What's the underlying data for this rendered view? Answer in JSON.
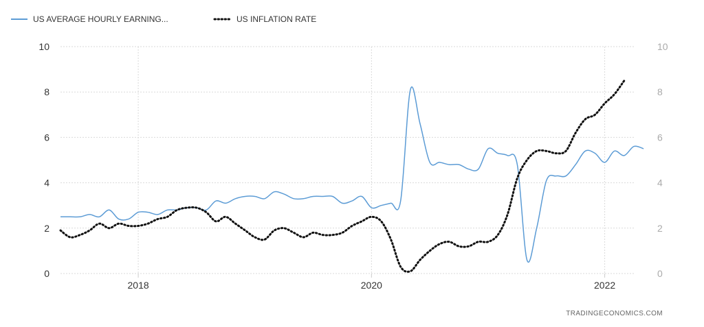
{
  "chart_data": {
    "type": "line",
    "legend": {
      "placement": "top-left"
    },
    "grid": true,
    "xlim": [
      "2017-05",
      "2022-04"
    ],
    "ylim": [
      0,
      10
    ],
    "y2lim": [
      0,
      10
    ],
    "y_ticks": [
      "0",
      "2",
      "4",
      "6",
      "8",
      "10"
    ],
    "y2_ticks": [
      "0",
      "2",
      "4",
      "6",
      "8",
      "10"
    ],
    "x_ticks": [
      {
        "label": "2018",
        "date": "2018-01"
      },
      {
        "label": "2020",
        "date": "2020-01"
      },
      {
        "label": "2022",
        "date": "2022-01"
      }
    ],
    "series": [
      {
        "name": "US AVERAGE HOURLY EARNING...",
        "color": "#5b9bd5",
        "style": "solid",
        "points": [
          [
            "2017-05",
            2.5
          ],
          [
            "2017-06",
            2.5
          ],
          [
            "2017-07",
            2.5
          ],
          [
            "2017-08",
            2.6
          ],
          [
            "2017-09",
            2.5
          ],
          [
            "2017-10",
            2.8
          ],
          [
            "2017-11",
            2.4
          ],
          [
            "2017-12",
            2.4
          ],
          [
            "2018-01",
            2.7
          ],
          [
            "2018-02",
            2.7
          ],
          [
            "2018-03",
            2.6
          ],
          [
            "2018-04",
            2.8
          ],
          [
            "2018-05",
            2.8
          ],
          [
            "2018-06",
            2.9
          ],
          [
            "2018-07",
            2.9
          ],
          [
            "2018-08",
            2.8
          ],
          [
            "2018-09",
            3.2
          ],
          [
            "2018-10",
            3.1
          ],
          [
            "2018-11",
            3.3
          ],
          [
            "2018-12",
            3.4
          ],
          [
            "2019-01",
            3.4
          ],
          [
            "2019-02",
            3.3
          ],
          [
            "2019-03",
            3.6
          ],
          [
            "2019-04",
            3.5
          ],
          [
            "2019-05",
            3.3
          ],
          [
            "2019-06",
            3.3
          ],
          [
            "2019-07",
            3.4
          ],
          [
            "2019-08",
            3.4
          ],
          [
            "2019-09",
            3.4
          ],
          [
            "2019-10",
            3.1
          ],
          [
            "2019-11",
            3.2
          ],
          [
            "2019-12",
            3.4
          ],
          [
            "2020-01",
            2.9
          ],
          [
            "2020-02",
            3.0
          ],
          [
            "2020-03",
            3.1
          ],
          [
            "2020-04",
            3.2
          ],
          [
            "2020-05",
            8.1
          ],
          [
            "2020-06",
            6.6
          ],
          [
            "2020-07",
            4.9
          ],
          [
            "2020-08",
            4.9
          ],
          [
            "2020-09",
            4.8
          ],
          [
            "2020-10",
            4.8
          ],
          [
            "2020-11",
            4.6
          ],
          [
            "2020-12",
            4.6
          ],
          [
            "2021-01",
            5.5
          ],
          [
            "2021-02",
            5.3
          ],
          [
            "2021-03",
            5.2
          ],
          [
            "2021-04",
            4.8
          ],
          [
            "2021-05",
            0.6
          ],
          [
            "2021-06",
            2.0
          ],
          [
            "2021-07",
            4.1
          ],
          [
            "2021-08",
            4.3
          ],
          [
            "2021-09",
            4.3
          ],
          [
            "2021-10",
            4.8
          ],
          [
            "2021-11",
            5.4
          ],
          [
            "2021-12",
            5.3
          ],
          [
            "2022-01",
            4.9
          ],
          [
            "2022-02",
            5.4
          ],
          [
            "2022-03",
            5.2
          ],
          [
            "2022-04",
            5.6
          ],
          [
            "2022-05",
            5.5
          ]
        ]
      },
      {
        "name": "US INFLATION RATE",
        "color": "#111111",
        "style": "dotted",
        "points": [
          [
            "2017-05",
            1.9
          ],
          [
            "2017-06",
            1.6
          ],
          [
            "2017-07",
            1.7
          ],
          [
            "2017-08",
            1.9
          ],
          [
            "2017-09",
            2.2
          ],
          [
            "2017-10",
            2.0
          ],
          [
            "2017-11",
            2.2
          ],
          [
            "2017-12",
            2.1
          ],
          [
            "2018-01",
            2.1
          ],
          [
            "2018-02",
            2.2
          ],
          [
            "2018-03",
            2.4
          ],
          [
            "2018-04",
            2.5
          ],
          [
            "2018-05",
            2.8
          ],
          [
            "2018-06",
            2.9
          ],
          [
            "2018-07",
            2.9
          ],
          [
            "2018-08",
            2.7
          ],
          [
            "2018-09",
            2.3
          ],
          [
            "2018-10",
            2.5
          ],
          [
            "2018-11",
            2.2
          ],
          [
            "2018-12",
            1.9
          ],
          [
            "2019-01",
            1.6
          ],
          [
            "2019-02",
            1.5
          ],
          [
            "2019-03",
            1.9
          ],
          [
            "2019-04",
            2.0
          ],
          [
            "2019-05",
            1.8
          ],
          [
            "2019-06",
            1.6
          ],
          [
            "2019-07",
            1.8
          ],
          [
            "2019-08",
            1.7
          ],
          [
            "2019-09",
            1.7
          ],
          [
            "2019-10",
            1.8
          ],
          [
            "2019-11",
            2.1
          ],
          [
            "2019-12",
            2.3
          ],
          [
            "2020-01",
            2.5
          ],
          [
            "2020-02",
            2.3
          ],
          [
            "2020-03",
            1.5
          ],
          [
            "2020-04",
            0.3
          ],
          [
            "2020-05",
            0.1
          ],
          [
            "2020-06",
            0.6
          ],
          [
            "2020-07",
            1.0
          ],
          [
            "2020-08",
            1.3
          ],
          [
            "2020-09",
            1.4
          ],
          [
            "2020-10",
            1.2
          ],
          [
            "2020-11",
            1.2
          ],
          [
            "2020-12",
            1.4
          ],
          [
            "2021-01",
            1.4
          ],
          [
            "2021-02",
            1.7
          ],
          [
            "2021-03",
            2.6
          ],
          [
            "2021-04",
            4.2
          ],
          [
            "2021-05",
            5.0
          ],
          [
            "2021-06",
            5.4
          ],
          [
            "2021-07",
            5.4
          ],
          [
            "2021-08",
            5.3
          ],
          [
            "2021-09",
            5.4
          ],
          [
            "2021-10",
            6.2
          ],
          [
            "2021-11",
            6.8
          ],
          [
            "2021-12",
            7.0
          ],
          [
            "2022-01",
            7.5
          ],
          [
            "2022-02",
            7.9
          ],
          [
            "2022-03",
            8.5
          ]
        ]
      }
    ]
  },
  "credit": "TRADINGECONOMICS.COM"
}
